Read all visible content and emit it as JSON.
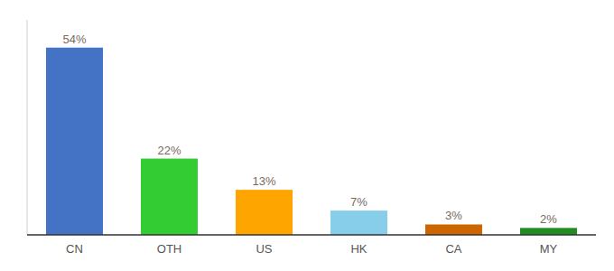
{
  "chart_data": {
    "type": "bar",
    "categories": [
      "CN",
      "OTH",
      "US",
      "HK",
      "CA",
      "MY"
    ],
    "values": [
      54,
      22,
      13,
      7,
      3,
      2
    ],
    "value_labels": [
      "54%",
      "22%",
      "13%",
      "7%",
      "3%",
      "2%"
    ],
    "colors": [
      "#4472C4",
      "#33CC33",
      "#FFA500",
      "#87CEEB",
      "#CC6600",
      "#228B22"
    ],
    "ylim": [
      0,
      62
    ],
    "data_labels": true,
    "tick_labels": "x",
    "grid": false
  }
}
